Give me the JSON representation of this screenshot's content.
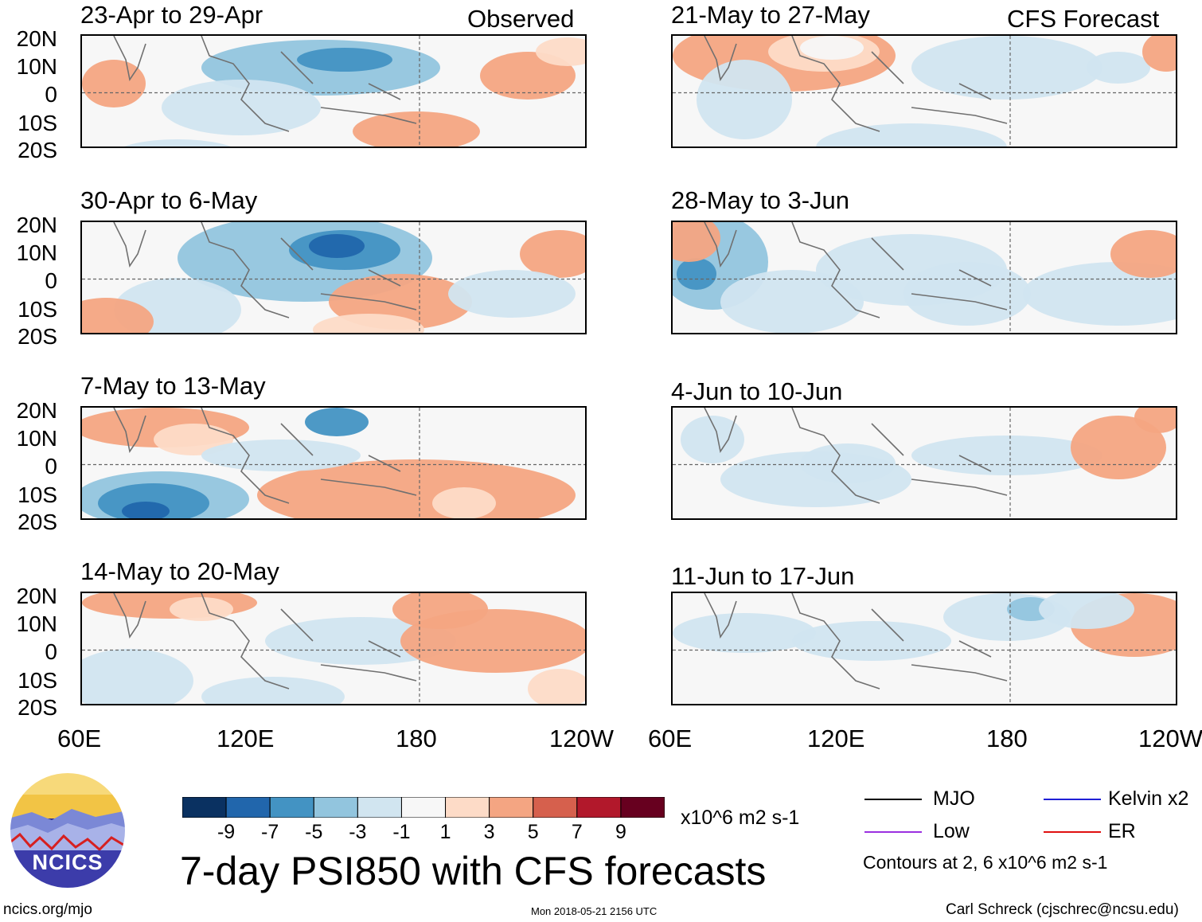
{
  "chart_data": {
    "type": "heatmap",
    "title": "7-day PSI850 with CFS forecasts",
    "units": "x10^6 m2 s-1",
    "x_ticks": [
      "60E",
      "120E",
      "180",
      "120W"
    ],
    "y_ticks": [
      "20N",
      "10N",
      "0",
      "10S",
      "20S"
    ],
    "colorbar_ticks": [
      "-9",
      "-7",
      "-5",
      "-3",
      "-1",
      "1",
      "3",
      "5",
      "7",
      "9"
    ],
    "colorbar_colors": [
      "#0a3161",
      "#2166ac",
      "#4393c3",
      "#92c5de",
      "#d1e5f0",
      "#f7f7f7",
      "#fddbc7",
      "#f4a582",
      "#d6604d",
      "#b2182b",
      "#67001f"
    ],
    "columns": [
      "Observed",
      "CFS Forecast"
    ],
    "panels_observed": [
      {
        "label": "23-Apr to 29-Apr"
      },
      {
        "label": "30-Apr to 6-May"
      },
      {
        "label": "7-May to 13-May"
      },
      {
        "label": "14-May to 20-May"
      }
    ],
    "panels_forecast": [
      {
        "label": "21-May to 27-May"
      },
      {
        "label": "28-May to 3-Jun"
      },
      {
        "label": "4-Jun to 10-Jun"
      },
      {
        "label": "11-Jun to 17-Jun"
      }
    ],
    "legend": [
      {
        "name": "MJO",
        "color": "#000000"
      },
      {
        "name": "Kelvin x2",
        "color": "#1f1fd6"
      },
      {
        "name": "Low",
        "color": "#9b30e0"
      },
      {
        "name": "ER",
        "color": "#e01010"
      }
    ],
    "contour_note": "Contours at 2, 6 x10^6 m2 s-1"
  },
  "footer": {
    "left": "ncics.org/mjo",
    "center": "Mon 2018-05-21 2156 UTC",
    "right": "Carl Schreck (cjschrec@ncsu.edu)"
  },
  "logo": {
    "text": "NCICS"
  }
}
